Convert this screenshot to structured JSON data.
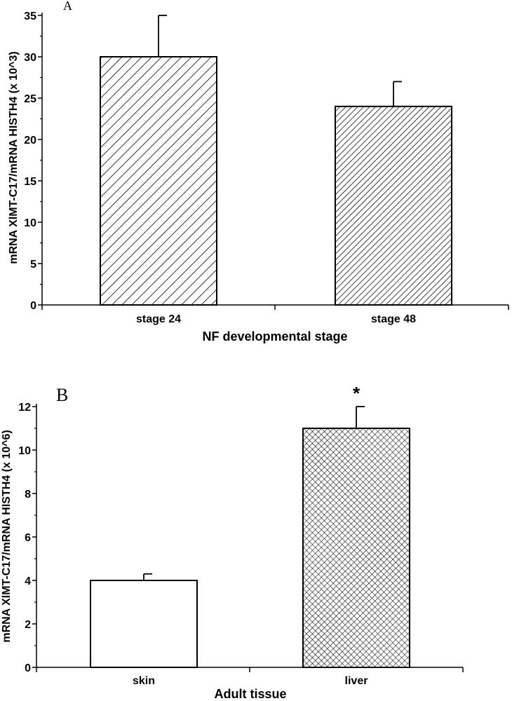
{
  "chart_data": [
    {
      "type": "bar",
      "panel_label": "A",
      "categories": [
        "stage 24",
        "stage 48"
      ],
      "values": [
        30,
        24
      ],
      "error_upper": [
        35,
        27
      ],
      "bar_fills": [
        "hatch-wide",
        "hatch-dense"
      ],
      "significance": [
        "",
        ""
      ],
      "xlabel": "NF developmental stage",
      "ylabel": "mRNA XlMT-C17/mRNA HISTH4 (x 10^3)",
      "ylim": [
        0,
        35
      ],
      "yticks": [
        0,
        5,
        10,
        15,
        20,
        25,
        30,
        35
      ]
    },
    {
      "type": "bar",
      "panel_label": "B",
      "categories": [
        "skin",
        "liver"
      ],
      "values": [
        4,
        11
      ],
      "error_upper": [
        4.3,
        12
      ],
      "bar_fills": [
        "white",
        "crosshatch"
      ],
      "significance": [
        "",
        "*"
      ],
      "xlabel": "Adult tissue",
      "ylabel": "mRNA XlMT-C17/mRNA HISTH4 (x 10^6)",
      "ylim": [
        0,
        12
      ],
      "yticks": [
        0,
        2,
        4,
        6,
        8,
        10,
        12
      ]
    }
  ]
}
